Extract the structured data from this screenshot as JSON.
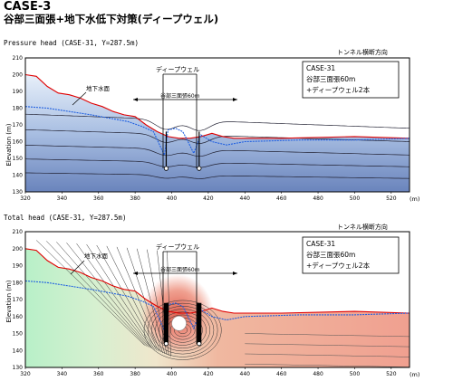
{
  "header": {
    "case_title": "CASE-3",
    "subtitle": "谷部三面張+地下水低下対策(ディープウェル)"
  },
  "chart_data": [
    {
      "type": "contour",
      "title": "Pressure head (CASE-31, Y=287.5m)",
      "direction_label": "トンネル横断方向",
      "ylabel": "Elevation (m)",
      "xunit": "(m)",
      "xlim": [
        320,
        530
      ],
      "ylim": [
        130,
        210
      ],
      "xticks": [
        320,
        340,
        360,
        380,
        400,
        420,
        440,
        460,
        480,
        500,
        520
      ],
      "yticks": [
        130,
        140,
        150,
        160,
        170,
        180,
        190,
        200,
        210
      ],
      "legend_lines": [
        "CASE-31",
        "谷部三面張60m",
        "+ディープウェル2本"
      ],
      "annotations": {
        "groundwater": "地下水面",
        "well": "ディープウェル",
        "span": "谷部三面張60m"
      },
      "ground_surface": [
        [
          320,
          200
        ],
        [
          326,
          199
        ],
        [
          332,
          193
        ],
        [
          338,
          189
        ],
        [
          344,
          188
        ],
        [
          350,
          186
        ],
        [
          356,
          183
        ],
        [
          362,
          181
        ],
        [
          368,
          178
        ],
        [
          374,
          176
        ],
        [
          380,
          175
        ],
        [
          386,
          170
        ],
        [
          392,
          166
        ],
        [
          398,
          163
        ],
        [
          404,
          162
        ],
        [
          410,
          162
        ],
        [
          416,
          163
        ],
        [
          422,
          165
        ],
        [
          428,
          163
        ],
        [
          434,
          162
        ],
        [
          440,
          162
        ],
        [
          460,
          162
        ],
        [
          500,
          163
        ],
        [
          530,
          162
        ]
      ],
      "groundwater_table": [
        [
          320,
          181
        ],
        [
          332,
          180
        ],
        [
          344,
          178
        ],
        [
          356,
          176
        ],
        [
          366,
          174
        ],
        [
          376,
          172
        ],
        [
          384,
          169
        ],
        [
          390,
          166
        ],
        [
          396,
          152
        ],
        [
          398,
          167
        ],
        [
          402,
          168
        ],
        [
          406,
          166
        ],
        [
          408,
          162
        ],
        [
          412,
          153
        ],
        [
          416,
          164
        ],
        [
          422,
          160
        ],
        [
          430,
          158
        ],
        [
          440,
          160
        ],
        [
          470,
          161
        ],
        [
          500,
          161
        ],
        [
          530,
          162
        ]
      ],
      "wells": [
        [
          397,
          144
        ],
        [
          415,
          144
        ]
      ]
    },
    {
      "type": "contour",
      "title": "Total head (CASE-31, Y=287.5m)",
      "direction_label": "トンネル横断方向",
      "ylabel": "Elevation (m)",
      "xunit": "(m)",
      "xlim": [
        320,
        530
      ],
      "ylim": [
        130,
        210
      ],
      "xticks": [
        320,
        340,
        360,
        380,
        400,
        420,
        440,
        460,
        480,
        500,
        520
      ],
      "yticks": [
        130,
        140,
        150,
        160,
        170,
        180,
        190,
        200,
        210
      ],
      "legend_lines": [
        "CASE-31",
        "谷部三面張60m",
        "+ディープウェル2本"
      ],
      "annotations": {
        "groundwater": "地下水面",
        "well": "ディープウェル",
        "span": "谷部三面張60m"
      },
      "ground_surface": [
        [
          320,
          200
        ],
        [
          326,
          199
        ],
        [
          332,
          193
        ],
        [
          338,
          189
        ],
        [
          344,
          188
        ],
        [
          350,
          186
        ],
        [
          356,
          183
        ],
        [
          362,
          181
        ],
        [
          368,
          178
        ],
        [
          374,
          176
        ],
        [
          380,
          175
        ],
        [
          386,
          170
        ],
        [
          392,
          166
        ],
        [
          398,
          163
        ],
        [
          404,
          162
        ],
        [
          410,
          162
        ],
        [
          416,
          163
        ],
        [
          422,
          165
        ],
        [
          428,
          163
        ],
        [
          434,
          162
        ],
        [
          440,
          162
        ],
        [
          460,
          162
        ],
        [
          500,
          163
        ],
        [
          530,
          162
        ]
      ],
      "groundwater_table": [
        [
          320,
          181
        ],
        [
          332,
          180
        ],
        [
          344,
          178
        ],
        [
          356,
          176
        ],
        [
          366,
          174
        ],
        [
          376,
          172
        ],
        [
          384,
          169
        ],
        [
          390,
          166
        ],
        [
          396,
          152
        ],
        [
          398,
          167
        ],
        [
          402,
          168
        ],
        [
          406,
          166
        ],
        [
          408,
          162
        ],
        [
          412,
          153
        ],
        [
          416,
          164
        ],
        [
          422,
          160
        ],
        [
          430,
          158
        ],
        [
          440,
          160
        ],
        [
          470,
          161
        ],
        [
          500,
          161
        ],
        [
          530,
          162
        ]
      ],
      "wells": [
        [
          397,
          144
        ],
        [
          415,
          144
        ]
      ]
    }
  ],
  "colors": {
    "frame": "#000000",
    "ground_surface": "#e00000",
    "groundwater": "#2060e0",
    "pressure_light": "#e8f0fa",
    "pressure_dark": "#7088c0",
    "total_green": "#b8f0c8",
    "total_red": "#f0a090"
  }
}
